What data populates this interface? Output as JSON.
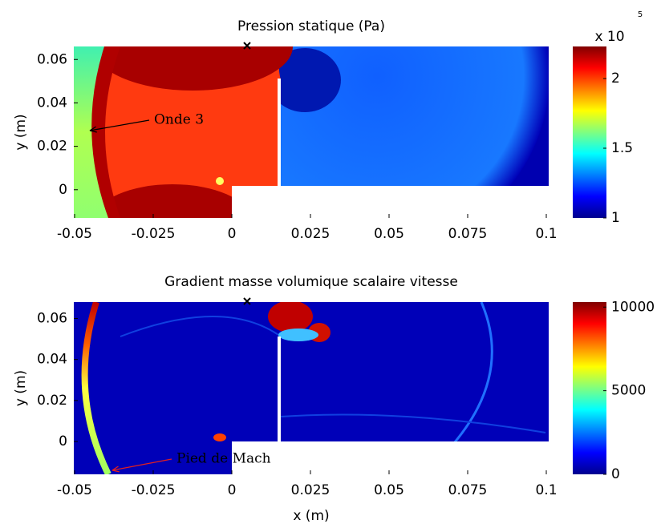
{
  "chart_data": [
    {
      "type": "heatmap",
      "title": "Pression statique (Pa)",
      "ylabel": "y (m)",
      "xlim": [
        -0.05,
        0.1
      ],
      "xticks": [
        -0.05,
        -0.025,
        0,
        0.025,
        0.05,
        0.075,
        0.1
      ],
      "ylim": [
        -0.013,
        0.066
      ],
      "yticks": [
        0,
        0.02,
        0.04,
        0.06
      ],
      "colorbar": {
        "clim": [
          1,
          2.23
        ],
        "ticks": [
          1,
          1.5,
          2
        ],
        "multiplier_label": "x 10",
        "exponent": "5"
      },
      "annotations": [
        {
          "text": "Onde 3",
          "color": "#000000"
        }
      ]
    },
    {
      "type": "heatmap",
      "title": "Gradient masse volumique scalaire vitesse",
      "xlabel": "x (m)",
      "ylabel": "y (m)",
      "xlim": [
        -0.05,
        0.1
      ],
      "xticks": [
        -0.05,
        -0.025,
        0,
        0.025,
        0.05,
        0.075,
        0.1
      ],
      "ylim": [
        -0.016,
        0.068
      ],
      "yticks": [
        0,
        0.02,
        0.04,
        0.06
      ],
      "colorbar": {
        "clim": [
          0,
          10300
        ],
        "ticks": [
          0,
          5000,
          10000
        ]
      },
      "annotations": [
        {
          "text": "Pied de Mach",
          "color": "#e02020"
        }
      ]
    }
  ]
}
